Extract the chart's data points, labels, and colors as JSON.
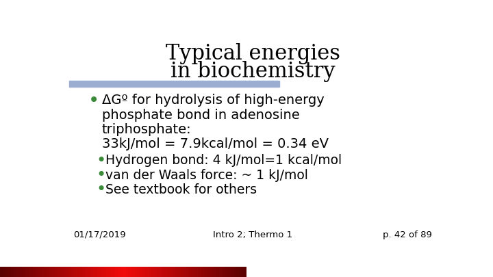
{
  "title_line1": "Typical energies",
  "title_line2": "in biochemistry",
  "title_fontsize": 22,
  "title_color": "#000000",
  "background_color": "#ffffff",
  "divider_color": "#9badd0",
  "bullet_color": "#3a8a3a",
  "bullet1_text_line1": "ΔGº for hydrolysis of high-energy",
  "bullet1_text_line2": "phosphate bond in adenosine",
  "bullet1_text_line3": "triphosphate:",
  "bullet1_text_line4": "33kJ/mol = 7.9kcal/mol = 0.34 eV",
  "bullet2_text": "Hydrogen bond: 4 kJ/mol=1 kcal/mol",
  "bullet3_text": "van der Waals force: ~ 1 kJ/mol",
  "bullet4_text": "See textbook for others",
  "bullet_fontsize_large": 14,
  "bullet_fontsize_small": 13.5,
  "footer_left": "01/17/2019",
  "footer_center": "Intro 2; Thermo 1",
  "footer_right": "p. 42 of 89",
  "footer_fontsize": 9.5,
  "footer_color": "#000000"
}
